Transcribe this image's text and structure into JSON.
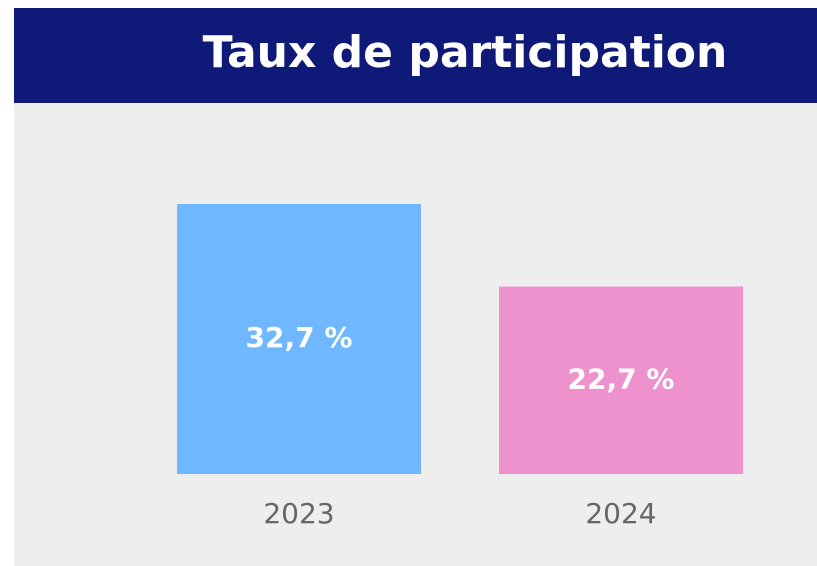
{
  "chart_data": {
    "type": "bar",
    "title": "Taux de participation",
    "categories": [
      "2023",
      "2024"
    ],
    "values": [
      32.7,
      22.7
    ],
    "value_labels": [
      "32,7 %",
      "22,7 %"
    ],
    "colors": [
      "#6fb8ff",
      "#ee92cd"
    ]
  }
}
